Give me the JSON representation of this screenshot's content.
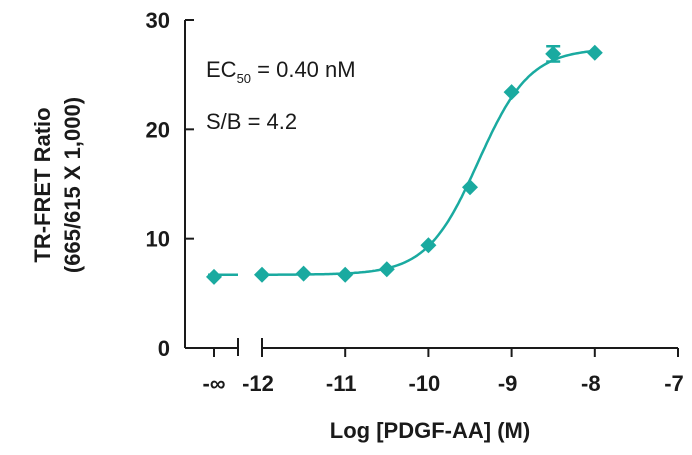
{
  "chart_data": {
    "type": "scatter",
    "xlabel": "Log [PDGF-AA] (M)",
    "ylabel_line1": "TR-FRET Ratio",
    "ylabel_line2": "(665/615 X 1,000)",
    "ylim": [
      0,
      30
    ],
    "xlim": [
      -12,
      -7
    ],
    "y_ticks": [
      "0",
      "10",
      "20",
      "30"
    ],
    "x_ticks": [
      "-12",
      "-11",
      "-10",
      "-9",
      "-8",
      "-7"
    ],
    "x_inf_label": "-∞",
    "annotations": {
      "ec50_prefix": "EC",
      "ec50_sub": "50",
      "ec50_value": " = 0.40 nM",
      "sb": "S/B = 4.2"
    },
    "color": "#1aaaa0",
    "points_inf": [
      {
        "x": "-∞",
        "y": 6.5
      }
    ],
    "points": [
      {
        "x": -12.0,
        "y": 6.7
      },
      {
        "x": -11.5,
        "y": 6.8
      },
      {
        "x": -11.0,
        "y": 6.7
      },
      {
        "x": -10.5,
        "y": 7.2
      },
      {
        "x": -10.0,
        "y": 9.4
      },
      {
        "x": -9.5,
        "y": 14.7
      },
      {
        "x": -9.0,
        "y": 23.4
      },
      {
        "x": -8.5,
        "y": 26.9
      },
      {
        "x": -8.0,
        "y": 27.0
      }
    ],
    "error_bars": [
      {
        "x": -8.5,
        "low": 26.2,
        "high": 27.6
      }
    ],
    "fit": {
      "bottom": 6.7,
      "top": 27.4,
      "log_ec50": -9.4,
      "hill": 1.4
    },
    "legend": "none",
    "grid": false
  }
}
